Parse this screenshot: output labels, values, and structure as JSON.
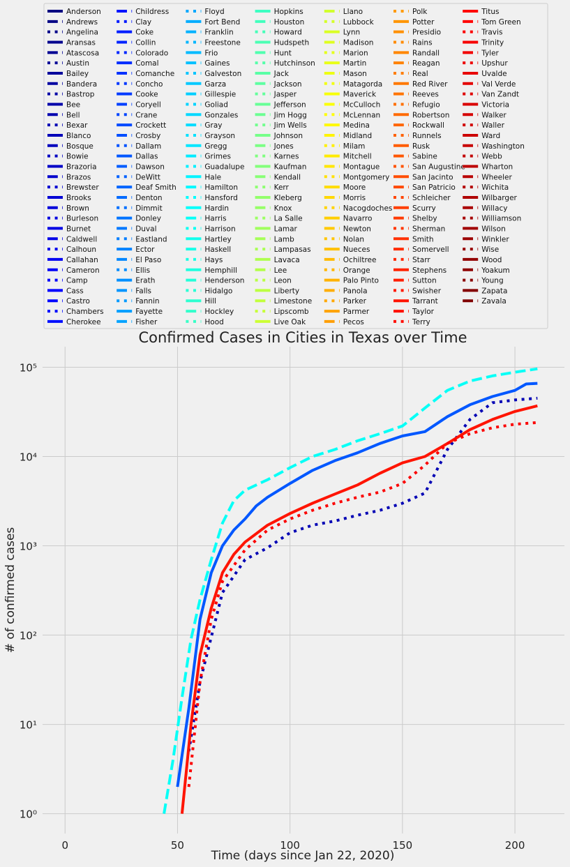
{
  "chart_data": {
    "type": "line",
    "title": "Confirmed Cases in Cities in Texas over Time",
    "xlabel": "Time (days since Jan 22, 2020)",
    "ylabel": "# of confirmed cases",
    "x_scale": "linear",
    "y_scale": "log",
    "xlim": [
      -10,
      222
    ],
    "ylim": [
      0.6,
      170000
    ],
    "x_ticks": [
      0,
      50,
      100,
      150,
      200
    ],
    "x_tick_labels": [
      "0",
      "50",
      "100",
      "150",
      "200"
    ],
    "y_ticks": [
      1,
      10,
      100,
      1000,
      10000,
      100000
    ],
    "y_tick_labels": [
      "10⁰",
      "10¹",
      "10²",
      "10³",
      "10⁴",
      "10⁵"
    ],
    "grid": true,
    "legend_placement": "top",
    "legend_columns": 7,
    "colormap": "jet",
    "line_styles": [
      "solid",
      "dashed",
      "dotted"
    ],
    "series": [
      {
        "name": "Anderson"
      },
      {
        "name": "Andrews"
      },
      {
        "name": "Angelina"
      },
      {
        "name": "Aransas"
      },
      {
        "name": "Atascosa"
      },
      {
        "name": "Austin"
      },
      {
        "name": "Bailey"
      },
      {
        "name": "Bandera"
      },
      {
        "name": "Bastrop"
      },
      {
        "name": "Bee"
      },
      {
        "name": "Bell"
      },
      {
        "name": "Bexar",
        "x": [
          55,
          60,
          70,
          80,
          90,
          100,
          110,
          120,
          130,
          140,
          150,
          160,
          170,
          180,
          190,
          200,
          210
        ],
        "values": [
          5,
          30,
          300,
          700,
          950,
          1400,
          1700,
          1900,
          2200,
          2500,
          3000,
          3900,
          12000,
          26000,
          40000,
          43000,
          45000
        ]
      },
      {
        "name": "Blanco"
      },
      {
        "name": "Bosque"
      },
      {
        "name": "Bowie"
      },
      {
        "name": "Brazoria"
      },
      {
        "name": "Brazos"
      },
      {
        "name": "Brewster"
      },
      {
        "name": "Brooks"
      },
      {
        "name": "Brown"
      },
      {
        "name": "Burleson"
      },
      {
        "name": "Burnet"
      },
      {
        "name": "Caldwell"
      },
      {
        "name": "Calhoun"
      },
      {
        "name": "Callahan"
      },
      {
        "name": "Cameron"
      },
      {
        "name": "Camp"
      },
      {
        "name": "Cass"
      },
      {
        "name": "Castro"
      },
      {
        "name": "Chambers"
      },
      {
        "name": "Cherokee"
      },
      {
        "name": "Childress"
      },
      {
        "name": "Clay"
      },
      {
        "name": "Coke"
      },
      {
        "name": "Collin"
      },
      {
        "name": "Colorado"
      },
      {
        "name": "Comal"
      },
      {
        "name": "Comanche"
      },
      {
        "name": "Concho"
      },
      {
        "name": "Cooke"
      },
      {
        "name": "Coryell"
      },
      {
        "name": "Crane"
      },
      {
        "name": "Crockett"
      },
      {
        "name": "Crosby"
      },
      {
        "name": "Dallam"
      },
      {
        "name": "Dallas",
        "x": [
          50,
          55,
          60,
          65,
          70,
          75,
          80,
          85,
          90,
          100,
          110,
          120,
          130,
          140,
          150,
          160,
          170,
          180,
          190,
          200,
          205,
          210
        ],
        "values": [
          2,
          15,
          150,
          500,
          1000,
          1500,
          2000,
          2800,
          3500,
          5000,
          7000,
          9000,
          11000,
          14000,
          17000,
          19000,
          28000,
          38000,
          47000,
          55000,
          65000,
          66000
        ]
      },
      {
        "name": "Dawson"
      },
      {
        "name": "DeWitt"
      },
      {
        "name": "Deaf Smith"
      },
      {
        "name": "Denton"
      },
      {
        "name": "Dimmit"
      },
      {
        "name": "Donley"
      },
      {
        "name": "Duval"
      },
      {
        "name": "Eastland"
      },
      {
        "name": "Ector"
      },
      {
        "name": "El Paso"
      },
      {
        "name": "Ellis"
      },
      {
        "name": "Erath"
      },
      {
        "name": "Falls"
      },
      {
        "name": "Fannin"
      },
      {
        "name": "Fayette"
      },
      {
        "name": "Fisher"
      },
      {
        "name": "Floyd"
      },
      {
        "name": "Fort Bend"
      },
      {
        "name": "Franklin"
      },
      {
        "name": "Freestone"
      },
      {
        "name": "Frio"
      },
      {
        "name": "Gaines"
      },
      {
        "name": "Galveston"
      },
      {
        "name": "Garza"
      },
      {
        "name": "Gillespie"
      },
      {
        "name": "Goliad"
      },
      {
        "name": "Gonzales"
      },
      {
        "name": "Gray"
      },
      {
        "name": "Grayson"
      },
      {
        "name": "Gregg"
      },
      {
        "name": "Grimes"
      },
      {
        "name": "Guadalupe"
      },
      {
        "name": "Hale"
      },
      {
        "name": "Hamilton"
      },
      {
        "name": "Hansford"
      },
      {
        "name": "Hardin"
      },
      {
        "name": "Harris",
        "x": [
          44,
          48,
          52,
          56,
          60,
          65,
          70,
          75,
          80,
          90,
          100,
          110,
          120,
          130,
          140,
          150,
          160,
          170,
          180,
          190,
          200,
          210
        ],
        "values": [
          1,
          4,
          20,
          90,
          250,
          700,
          1800,
          3200,
          4200,
          5500,
          7500,
          10000,
          12000,
          15000,
          18000,
          22000,
          35000,
          55000,
          70000,
          80000,
          88000,
          96000
        ]
      },
      {
        "name": "Harrison"
      },
      {
        "name": "Hartley"
      },
      {
        "name": "Haskell"
      },
      {
        "name": "Hays"
      },
      {
        "name": "Hemphill"
      },
      {
        "name": "Henderson"
      },
      {
        "name": "Hidalgo"
      },
      {
        "name": "Hill"
      },
      {
        "name": "Hockley"
      },
      {
        "name": "Hood"
      },
      {
        "name": "Hopkins"
      },
      {
        "name": "Houston"
      },
      {
        "name": "Howard"
      },
      {
        "name": "Hudspeth"
      },
      {
        "name": "Hunt"
      },
      {
        "name": "Hutchinson"
      },
      {
        "name": "Jack"
      },
      {
        "name": "Jackson"
      },
      {
        "name": "Jasper"
      },
      {
        "name": "Jefferson"
      },
      {
        "name": "Jim Hogg"
      },
      {
        "name": "Jim Wells"
      },
      {
        "name": "Johnson"
      },
      {
        "name": "Jones"
      },
      {
        "name": "Karnes"
      },
      {
        "name": "Kaufman"
      },
      {
        "name": "Kendall"
      },
      {
        "name": "Kerr"
      },
      {
        "name": "Kleberg"
      },
      {
        "name": "Knox"
      },
      {
        "name": "La Salle"
      },
      {
        "name": "Lamar"
      },
      {
        "name": "Lamb"
      },
      {
        "name": "Lampasas"
      },
      {
        "name": "Lavaca"
      },
      {
        "name": "Lee"
      },
      {
        "name": "Leon"
      },
      {
        "name": "Liberty"
      },
      {
        "name": "Limestone"
      },
      {
        "name": "Lipscomb"
      },
      {
        "name": "Live Oak"
      },
      {
        "name": "Llano"
      },
      {
        "name": "Lubbock"
      },
      {
        "name": "Lynn"
      },
      {
        "name": "Madison"
      },
      {
        "name": "Marion"
      },
      {
        "name": "Martin"
      },
      {
        "name": "Mason"
      },
      {
        "name": "Matagorda"
      },
      {
        "name": "Maverick"
      },
      {
        "name": "McCulloch"
      },
      {
        "name": "McLennan"
      },
      {
        "name": "Medina"
      },
      {
        "name": "Midland"
      },
      {
        "name": "Milam"
      },
      {
        "name": "Mitchell"
      },
      {
        "name": "Montague"
      },
      {
        "name": "Montgomery"
      },
      {
        "name": "Moore"
      },
      {
        "name": "Morris"
      },
      {
        "name": "Nacogdoches"
      },
      {
        "name": "Navarro"
      },
      {
        "name": "Newton"
      },
      {
        "name": "Nolan"
      },
      {
        "name": "Nueces"
      },
      {
        "name": "Ochiltree"
      },
      {
        "name": "Orange"
      },
      {
        "name": "Palo Pinto"
      },
      {
        "name": "Panola"
      },
      {
        "name": "Parker"
      },
      {
        "name": "Parmer"
      },
      {
        "name": "Pecos"
      },
      {
        "name": "Polk"
      },
      {
        "name": "Potter"
      },
      {
        "name": "Presidio"
      },
      {
        "name": "Rains"
      },
      {
        "name": "Randall"
      },
      {
        "name": "Reagan"
      },
      {
        "name": "Real"
      },
      {
        "name": "Red River"
      },
      {
        "name": "Reeves"
      },
      {
        "name": "Refugio"
      },
      {
        "name": "Robertson"
      },
      {
        "name": "Rockwall"
      },
      {
        "name": "Runnels"
      },
      {
        "name": "Rusk"
      },
      {
        "name": "Sabine"
      },
      {
        "name": "San Augustine"
      },
      {
        "name": "San Jacinto"
      },
      {
        "name": "San Patricio"
      },
      {
        "name": "Schleicher"
      },
      {
        "name": "Scurry"
      },
      {
        "name": "Shelby"
      },
      {
        "name": "Sherman"
      },
      {
        "name": "Smith"
      },
      {
        "name": "Somervell"
      },
      {
        "name": "Starr"
      },
      {
        "name": "Stephens"
      },
      {
        "name": "Sutton"
      },
      {
        "name": "Swisher"
      },
      {
        "name": "Tarrant",
        "x": [
          52,
          56,
          60,
          65,
          70,
          75,
          80,
          90,
          100,
          110,
          120,
          130,
          140,
          150,
          160,
          170,
          180,
          190,
          200,
          210
        ],
        "values": [
          1,
          10,
          60,
          200,
          500,
          800,
          1100,
          1700,
          2300,
          3000,
          3800,
          4800,
          6500,
          8500,
          10000,
          14000,
          20000,
          26000,
          32000,
          37000
        ]
      },
      {
        "name": "Taylor"
      },
      {
        "name": "Terry"
      },
      {
        "name": "Titus"
      },
      {
        "name": "Tom Green"
      },
      {
        "name": "Travis",
        "x": [
          55,
          60,
          65,
          70,
          80,
          90,
          100,
          110,
          120,
          130,
          140,
          150,
          160,
          170,
          180,
          190,
          200,
          210
        ],
        "values": [
          2,
          30,
          150,
          400,
          900,
          1500,
          2000,
          2500,
          3000,
          3500,
          4000,
          5000,
          8000,
          14000,
          18000,
          21000,
          23000,
          24000
        ]
      },
      {
        "name": "Trinity"
      },
      {
        "name": "Tyler"
      },
      {
        "name": "Upshur"
      },
      {
        "name": "Uvalde"
      },
      {
        "name": "Val Verde"
      },
      {
        "name": "Van Zandt"
      },
      {
        "name": "Victoria"
      },
      {
        "name": "Walker"
      },
      {
        "name": "Waller"
      },
      {
        "name": "Ward"
      },
      {
        "name": "Washington"
      },
      {
        "name": "Webb"
      },
      {
        "name": "Wharton"
      },
      {
        "name": "Wheeler"
      },
      {
        "name": "Wichita"
      },
      {
        "name": "Wilbarger"
      },
      {
        "name": "Willacy"
      },
      {
        "name": "Williamson"
      },
      {
        "name": "Wilson"
      },
      {
        "name": "Winkler"
      },
      {
        "name": "Wise"
      },
      {
        "name": "Wood"
      },
      {
        "name": "Yoakum"
      },
      {
        "name": "Young"
      },
      {
        "name": "Zapata"
      },
      {
        "name": "Zavala"
      }
    ]
  }
}
